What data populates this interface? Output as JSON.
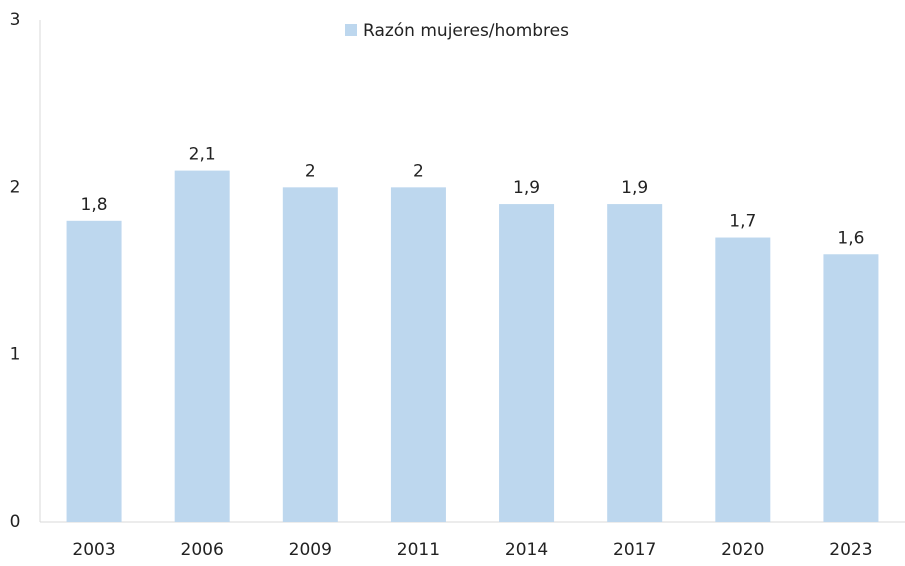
{
  "chart_data": {
    "type": "bar",
    "categories": [
      "2003",
      "2006",
      "2009",
      "2011",
      "2014",
      "2017",
      "2020",
      "2023"
    ],
    "series": [
      {
        "name": "Razón mujeres/hombres",
        "color": "#bdd7ee",
        "values": [
          1.8,
          2.1,
          2,
          2,
          1.9,
          1.9,
          1.7,
          1.6
        ],
        "value_labels": [
          "1,8",
          "2,1",
          "2",
          "2",
          "1,9",
          "1,9",
          "1,7",
          "1,6"
        ]
      }
    ],
    "ylim": [
      0,
      3
    ],
    "yticks": [
      0,
      1,
      2,
      3
    ],
    "grid": false,
    "legend": "top"
  }
}
